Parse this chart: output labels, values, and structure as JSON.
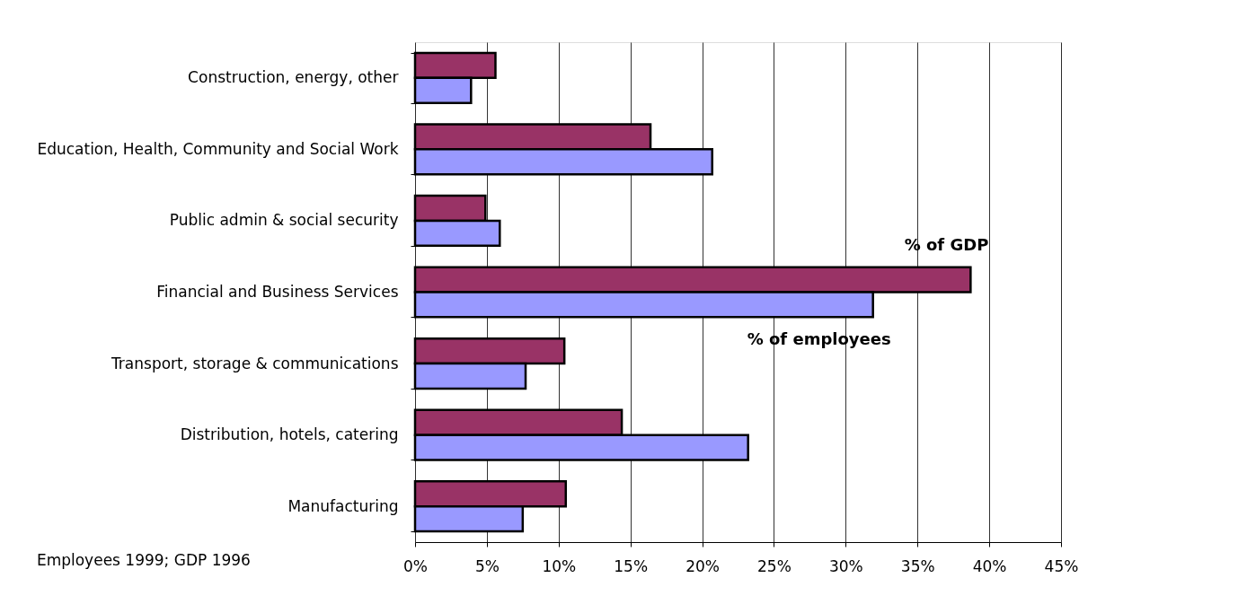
{
  "chart_data": {
    "type": "bar",
    "orientation": "horizontal",
    "categories": [
      "Construction, energy, other",
      "Education, Health, Community and Social Work",
      "Public admin & social security ",
      "Financial and Business Services",
      "Transport, storage & communications",
      "Distribution, hotels, catering",
      "Manufacturing "
    ],
    "series": [
      {
        "name": "% of GDP",
        "color": "#993366",
        "values": [
          5.6,
          16.4,
          4.9,
          38.7,
          10.4,
          14.4,
          10.5
        ]
      },
      {
        "name": "% of employees",
        "color": "#9999ff",
        "values": [
          3.9,
          20.7,
          5.9,
          31.9,
          7.7,
          23.2,
          7.5
        ]
      }
    ],
    "xlim": [
      0,
      45
    ],
    "xticks": [
      {
        "value": 0,
        "label": "0%"
      },
      {
        "value": 5,
        "label": "5%"
      },
      {
        "value": 10,
        "label": "10%"
      },
      {
        "value": 15,
        "label": "15%"
      },
      {
        "value": 20,
        "label": "20%"
      },
      {
        "value": 25,
        "label": "25%"
      },
      {
        "value": 30,
        "label": "30%"
      },
      {
        "value": 35,
        "label": "35%"
      },
      {
        "value": 40,
        "label": "40%"
      },
      {
        "value": 45,
        "label": "45%"
      }
    ],
    "grid": "x",
    "legend": false,
    "annotations": [
      "Employees 1999; GDP 1996"
    ]
  }
}
